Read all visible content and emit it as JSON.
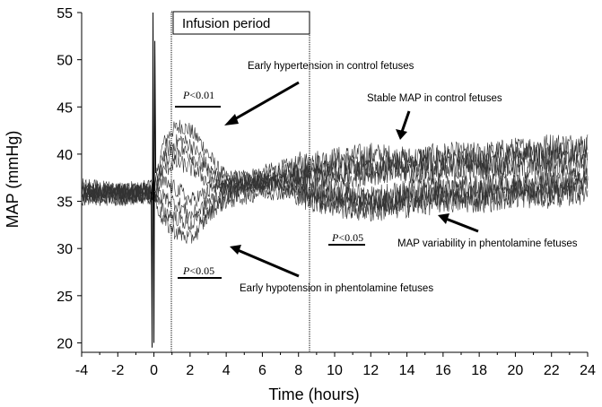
{
  "chart_data": {
    "type": "line",
    "xlabel": "Time (hours)",
    "ylabel": "MAP (mmHg)",
    "xlim": [
      -4,
      24
    ],
    "ylim": [
      19,
      55
    ],
    "x_ticks": [
      "-4",
      "-2",
      "0",
      "2",
      "4",
      "6",
      "8",
      "10",
      "12",
      "14",
      "16",
      "18",
      "20",
      "22",
      "24"
    ],
    "y_ticks": [
      "20",
      "25",
      "30",
      "35",
      "40",
      "45",
      "50",
      "55"
    ],
    "grid": false,
    "legend": "none",
    "infusion_period": {
      "label": "Infusion period",
      "start": 0,
      "end": 8
    },
    "series": [
      {
        "group": "control",
        "x": [
          -4,
          -2,
          0,
          0.5,
          1,
          1.5,
          2,
          2.5,
          3,
          3.5,
          4,
          5,
          6,
          7,
          8,
          10,
          12,
          14,
          16,
          18,
          20,
          22,
          24
        ],
        "y": [
          36,
          36,
          36,
          41,
          42.5,
          43,
          42.5,
          41.5,
          40,
          38.5,
          37.5,
          37.5,
          38,
          38.5,
          39,
          39.5,
          40,
          39.5,
          40,
          40,
          40.5,
          41,
          41
        ]
      },
      {
        "group": "control",
        "x": [
          -4,
          -2,
          0,
          0.5,
          1,
          1.5,
          2,
          2.5,
          3,
          3.5,
          4,
          5,
          6,
          7,
          8,
          10,
          12,
          14,
          16,
          18,
          20,
          22,
          24
        ],
        "y": [
          35.5,
          36,
          36,
          40,
          41,
          41.5,
          41,
          40,
          38.5,
          37.5,
          37,
          37.5,
          37.5,
          38,
          38.5,
          39,
          39,
          39,
          39.5,
          39.5,
          40,
          40,
          40.5
        ]
      },
      {
        "group": "control",
        "x": [
          -4,
          -2,
          0,
          0.5,
          1,
          1.5,
          2,
          2.5,
          3,
          3.5,
          4,
          5,
          6,
          7,
          8,
          10,
          12,
          14,
          16,
          18,
          20,
          22,
          24
        ],
        "y": [
          36,
          35.5,
          36,
          39,
          40,
          40.5,
          40,
          39,
          38,
          37,
          36.5,
          37,
          37,
          37.5,
          38,
          38,
          38.5,
          38.5,
          38.5,
          39,
          39,
          39.5,
          39.5
        ]
      },
      {
        "group": "control",
        "x": [
          -4,
          -2,
          0,
          0.5,
          1,
          1.5,
          2,
          2.5,
          3,
          3.5,
          4,
          5,
          6,
          7,
          8,
          10,
          12,
          14,
          16,
          18,
          20,
          22,
          24
        ],
        "y": [
          36.5,
          36,
          36.5,
          38,
          39,
          39,
          38.5,
          38,
          37,
          36.5,
          36.5,
          36.5,
          37,
          37,
          37.5,
          37.5,
          38,
          38,
          38,
          38.5,
          38.5,
          38.5,
          39
        ]
      },
      {
        "group": "phentolamine",
        "x": [
          -4,
          -2,
          0,
          0.5,
          1,
          1.5,
          2,
          2.5,
          3,
          3.5,
          4,
          5,
          6,
          7,
          8,
          10,
          12,
          14,
          16,
          18,
          20,
          22,
          24
        ],
        "y": [
          36,
          35.5,
          36,
          34,
          33.5,
          33,
          32.5,
          33,
          34,
          35,
          35.5,
          36,
          36.5,
          36.5,
          36,
          35,
          34.5,
          35,
          35.5,
          35.5,
          36,
          36,
          36.5
        ]
      },
      {
        "group": "phentolamine",
        "x": [
          -4,
          -2,
          0,
          0.5,
          1,
          1.5,
          2,
          2.5,
          3,
          3.5,
          4,
          5,
          6,
          7,
          8,
          10,
          12,
          14,
          16,
          18,
          20,
          22,
          24
        ],
        "y": [
          35.5,
          36,
          35.5,
          33,
          32,
          31.5,
          31,
          32,
          33.5,
          34.5,
          35,
          35.5,
          36,
          36,
          35.5,
          34.5,
          34,
          34.5,
          35,
          35,
          35.5,
          35.5,
          36
        ]
      },
      {
        "group": "phentolamine",
        "x": [
          -4,
          -2,
          0,
          0.5,
          1,
          1.5,
          2,
          2.5,
          3,
          3.5,
          4,
          5,
          6,
          7,
          8,
          10,
          12,
          14,
          16,
          18,
          20,
          22,
          24
        ],
        "y": [
          36,
          36,
          36,
          35.5,
          35,
          34.5,
          33.5,
          34,
          35,
          35.5,
          36,
          36.5,
          37,
          37,
          36.5,
          35.5,
          35,
          35.5,
          36,
          36,
          36.5,
          36.5,
          37
        ]
      },
      {
        "group": "phentolamine",
        "x": [
          -4,
          -2,
          0,
          0.5,
          1,
          1.5,
          2,
          2.5,
          3,
          3.5,
          4,
          5,
          6,
          7,
          8,
          10,
          12,
          14,
          16,
          18,
          20,
          22,
          24
        ],
        "y": [
          35.5,
          35.5,
          35.5,
          37,
          36.5,
          36,
          35,
          35.5,
          36,
          36.5,
          36.5,
          37,
          37,
          37.5,
          37,
          36,
          35.5,
          36,
          36.5,
          36.5,
          37,
          37,
          37.5
        ]
      }
    ],
    "annotations": [
      {
        "text": "Early hypertension in control fetuses"
      },
      {
        "text": "Stable  MAP in control fetuses"
      },
      {
        "text": "MAP variability in phentolamine fetuses"
      },
      {
        "text": "Early hypotension in phentolamine fetuses"
      }
    ],
    "p_labels": [
      {
        "italic": "P",
        "rest": "<0.01"
      },
      {
        "italic": "P",
        "rest": "<0.05"
      },
      {
        "italic": "P",
        "rest": "<0.05"
      }
    ],
    "colors": {
      "line": "#333333",
      "axis": "#000000"
    }
  }
}
